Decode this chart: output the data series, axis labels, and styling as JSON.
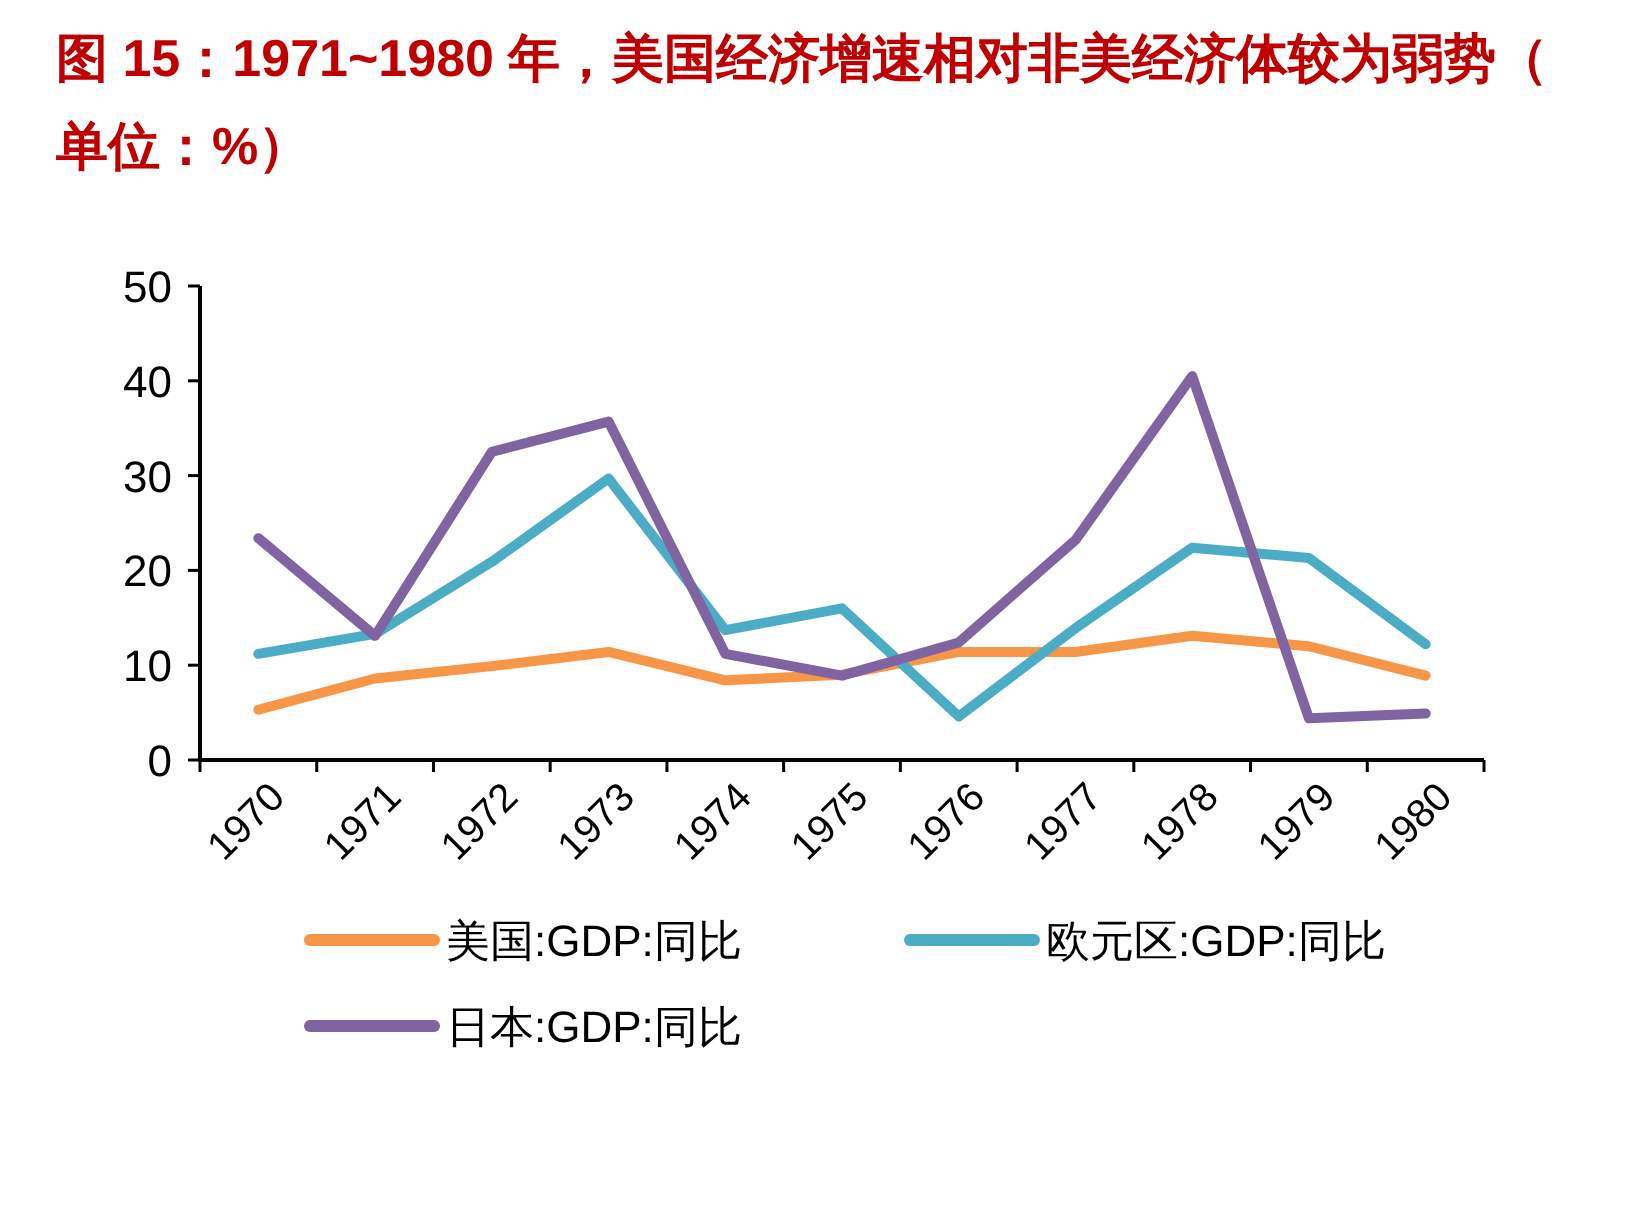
{
  "chart_data": {
    "type": "line",
    "title": "图  15：1971~1980 年，美国经济增速相对非美经济体较为弱势（单位：%）",
    "categories": [
      "1970",
      "1971",
      "1972",
      "1973",
      "1974",
      "1975",
      "1976",
      "1977",
      "1978",
      "1979",
      "1980"
    ],
    "series": [
      {
        "name": "美国:GDP:同比",
        "color": "#f79646",
        "values": [
          5.3,
          8.6,
          9.9,
          11.4,
          8.4,
          9.0,
          11.4,
          11.4,
          13.1,
          12.0,
          8.9
        ]
      },
      {
        "name": "欧元区:GDP:同比",
        "color": "#4bacc6",
        "values": [
          11.2,
          13.3,
          20.9,
          29.7,
          13.7,
          16.0,
          4.6,
          13.9,
          22.4,
          21.3,
          12.2
        ]
      },
      {
        "name": "日本:GDP:同比",
        "color": "#8064a2",
        "values": [
          23.4,
          13.1,
          32.5,
          35.7,
          11.2,
          8.9,
          12.4,
          23.2,
          40.5,
          4.4,
          4.9
        ]
      }
    ],
    "ylim": [
      0,
      50
    ],
    "yticks": [
      0,
      10,
      20,
      30,
      40,
      50
    ],
    "grid": false,
    "legend": "bottom",
    "marker": "none",
    "line_style": "solid"
  }
}
